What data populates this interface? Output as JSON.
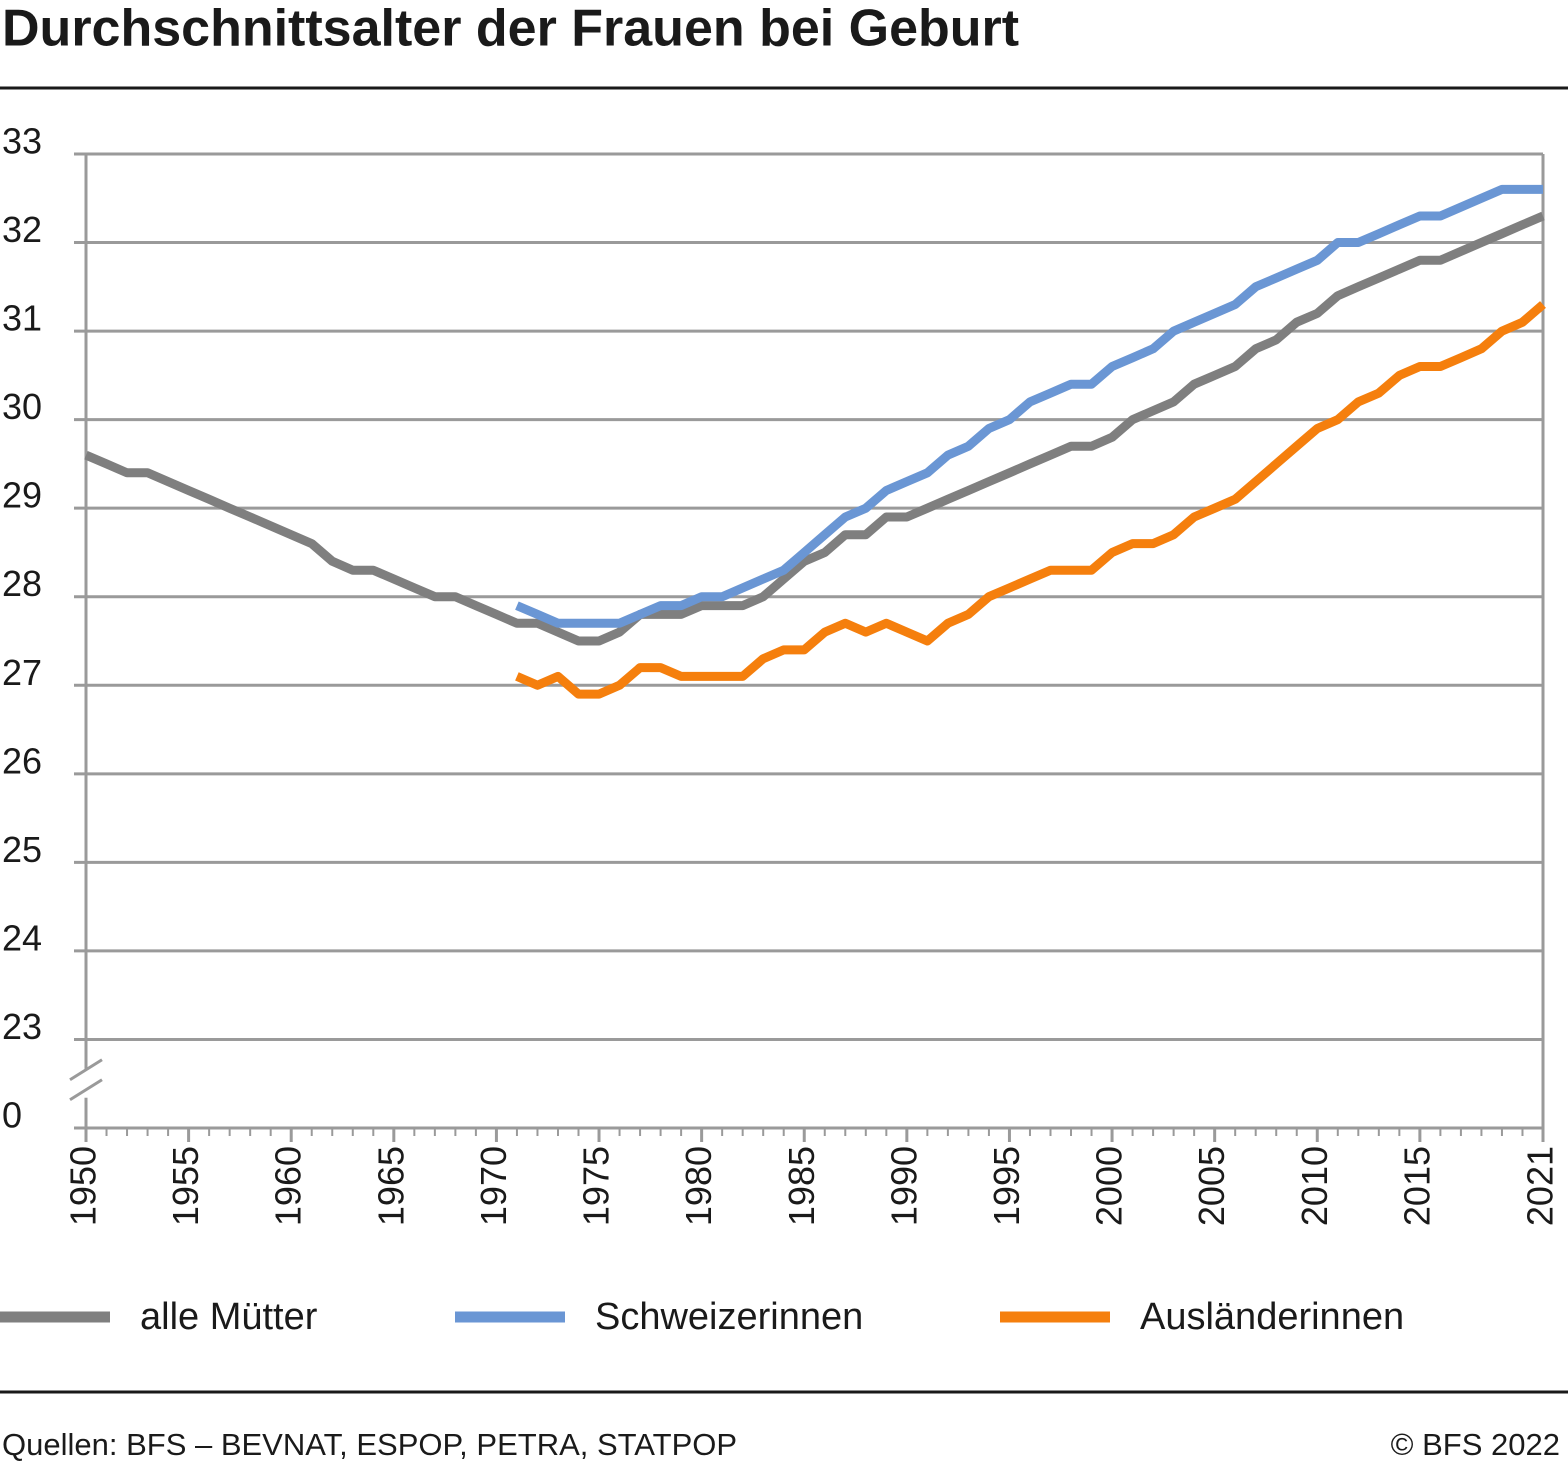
{
  "chart_data": {
    "type": "line",
    "title": "Durchschnittsalter der Frauen bei Geburt",
    "source": "Quellen: BFS – BEVNAT, ESPOP, PETRA, STATPOP",
    "copyright": "© BFS 2022",
    "x": [
      1950,
      1951,
      1952,
      1953,
      1954,
      1955,
      1956,
      1957,
      1958,
      1959,
      1960,
      1961,
      1962,
      1963,
      1964,
      1965,
      1966,
      1967,
      1968,
      1969,
      1970,
      1971,
      1972,
      1973,
      1974,
      1975,
      1976,
      1977,
      1978,
      1979,
      1980,
      1981,
      1982,
      1983,
      1984,
      1985,
      1986,
      1987,
      1988,
      1989,
      1990,
      1991,
      1992,
      1993,
      1994,
      1995,
      1996,
      1997,
      1998,
      1999,
      2000,
      2001,
      2002,
      2003,
      2004,
      2005,
      2006,
      2007,
      2008,
      2009,
      2010,
      2011,
      2012,
      2013,
      2014,
      2015,
      2016,
      2017,
      2018,
      2019,
      2020,
      2021
    ],
    "series": [
      {
        "name": "alle Mütter",
        "color": "#7f7f7f",
        "values": [
          29.6,
          29.5,
          29.4,
          29.4,
          29.3,
          29.2,
          29.1,
          29.0,
          28.9,
          28.8,
          28.7,
          28.6,
          28.4,
          28.3,
          28.3,
          28.2,
          28.1,
          28.0,
          28.0,
          27.9,
          27.8,
          27.7,
          27.7,
          27.6,
          27.5,
          27.5,
          27.6,
          27.8,
          27.8,
          27.8,
          27.9,
          27.9,
          27.9,
          28.0,
          28.2,
          28.4,
          28.5,
          28.7,
          28.7,
          28.9,
          28.9,
          29.0,
          29.1,
          29.2,
          29.3,
          29.4,
          29.5,
          29.6,
          29.7,
          29.7,
          29.8,
          30.0,
          30.1,
          30.2,
          30.4,
          30.5,
          30.6,
          30.8,
          30.9,
          31.1,
          31.2,
          31.4,
          31.5,
          31.6,
          31.7,
          31.8,
          31.8,
          31.9,
          32.0,
          32.1,
          32.2,
          32.3
        ]
      },
      {
        "name": "Schweizerinnen",
        "color": "#6a96d4",
        "values": [
          null,
          null,
          null,
          null,
          null,
          null,
          null,
          null,
          null,
          null,
          null,
          null,
          null,
          null,
          null,
          null,
          null,
          null,
          null,
          null,
          null,
          27.9,
          27.8,
          27.7,
          27.7,
          27.7,
          27.7,
          27.8,
          27.9,
          27.9,
          28.0,
          28.0,
          28.1,
          28.2,
          28.3,
          28.5,
          28.7,
          28.9,
          29.0,
          29.2,
          29.3,
          29.4,
          29.6,
          29.7,
          29.9,
          30.0,
          30.2,
          30.3,
          30.4,
          30.4,
          30.6,
          30.7,
          30.8,
          31.0,
          31.1,
          31.2,
          31.3,
          31.5,
          31.6,
          31.7,
          31.8,
          32.0,
          32.0,
          32.1,
          32.2,
          32.3,
          32.3,
          32.4,
          32.5,
          32.6,
          32.6,
          32.6
        ]
      },
      {
        "name": "Ausländerinnen",
        "color": "#f57f0d",
        "values": [
          null,
          null,
          null,
          null,
          null,
          null,
          null,
          null,
          null,
          null,
          null,
          null,
          null,
          null,
          null,
          null,
          null,
          null,
          null,
          null,
          null,
          27.1,
          27.0,
          27.1,
          26.9,
          26.9,
          27.0,
          27.2,
          27.2,
          27.1,
          27.1,
          27.1,
          27.1,
          27.3,
          27.4,
          27.4,
          27.6,
          27.7,
          27.6,
          27.7,
          27.6,
          27.5,
          27.7,
          27.8,
          28.0,
          28.1,
          28.2,
          28.3,
          28.3,
          28.3,
          28.5,
          28.6,
          28.6,
          28.7,
          28.9,
          29.0,
          29.1,
          29.3,
          29.5,
          29.7,
          29.9,
          30.0,
          30.2,
          30.3,
          30.5,
          30.6,
          30.6,
          30.7,
          30.8,
          31.0,
          31.1,
          31.3
        ]
      }
    ],
    "xlim": [
      1950,
      2021
    ],
    "xticks": [
      1950,
      1955,
      1960,
      1965,
      1970,
      1975,
      1980,
      1985,
      1990,
      1995,
      2000,
      2005,
      2010,
      2015,
      2021
    ],
    "ylim": [
      0,
      33
    ],
    "yticks": [
      0,
      23,
      24,
      25,
      26,
      27,
      28,
      29,
      30,
      31,
      32,
      33
    ],
    "axis_break": [
      0,
      23
    ],
    "grid": true,
    "legend": "bottom"
  }
}
